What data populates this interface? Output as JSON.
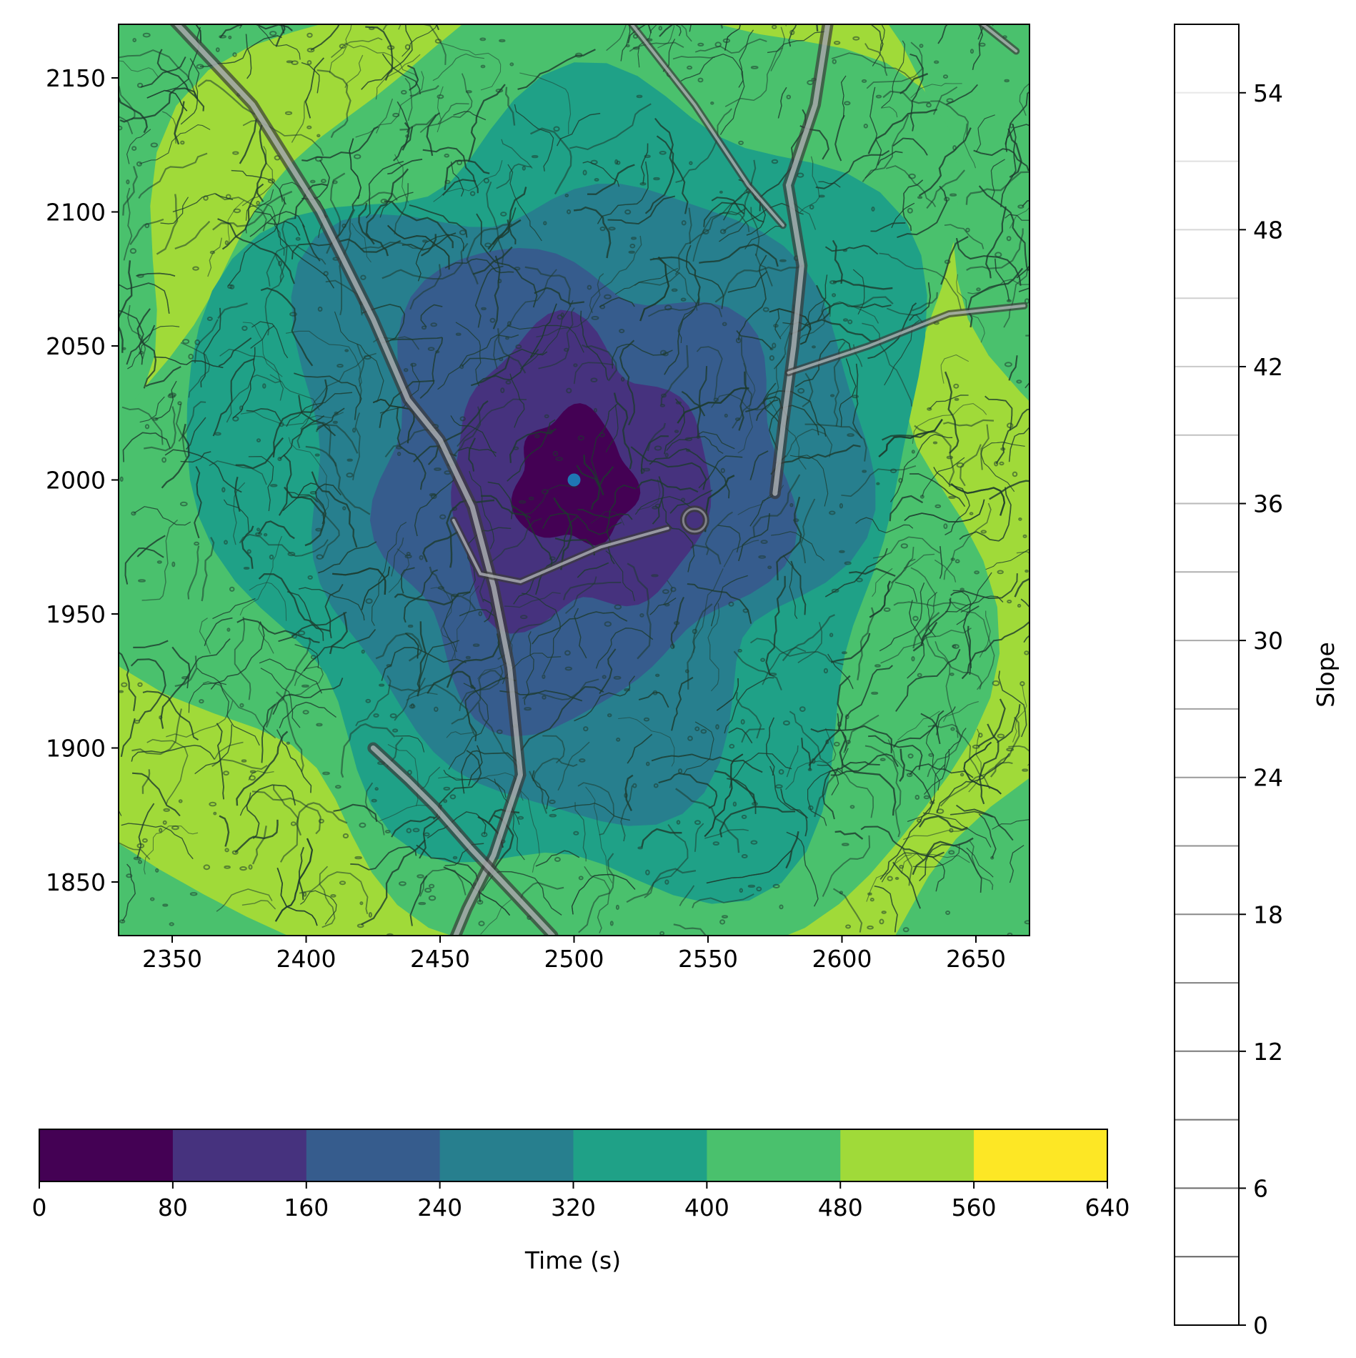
{
  "chart_data": [
    {
      "type": "heatmap",
      "title": "",
      "xlabel": "",
      "ylabel": "",
      "xlim": [
        2330,
        2670
      ],
      "ylim": [
        1830,
        2170
      ],
      "x_ticks": [
        2350,
        2400,
        2450,
        2500,
        2550,
        2600,
        2650
      ],
      "y_ticks": [
        1850,
        1900,
        1950,
        2000,
        2050,
        2100,
        2150
      ],
      "source_point": {
        "x": 2500,
        "y": 2000
      },
      "time_field": {
        "description": "travel time (s), contour-filled",
        "levels": [
          0,
          80,
          160,
          240,
          320,
          400,
          480,
          560,
          640
        ],
        "approx_ring_radii_units": [
          22,
          48,
          76,
          104,
          132,
          160,
          190
        ],
        "level_colors": [
          "#440154",
          "#46327e",
          "#365c8d",
          "#277f8e",
          "#1fa187",
          "#4ac16d",
          "#a0da39",
          "#fde725"
        ]
      }
    },
    {
      "type": "colorbar",
      "label": "Time (s)",
      "orientation": "horizontal",
      "boundaries": [
        0,
        80,
        160,
        240,
        320,
        400,
        480,
        560,
        640
      ],
      "tick_labels": [
        "0",
        "80",
        "160",
        "240",
        "320",
        "400",
        "480",
        "560",
        "640"
      ],
      "colors": [
        "#440154",
        "#46327e",
        "#365c8d",
        "#277f8e",
        "#1fa187",
        "#4ac16d",
        "#a0da39",
        "#fde725"
      ]
    },
    {
      "type": "colorbar",
      "label": "Slope",
      "orientation": "vertical",
      "range": [
        0,
        57
      ],
      "line_levels": [
        3,
        6,
        9,
        12,
        15,
        18,
        21,
        24,
        27,
        30,
        33,
        36,
        39,
        42,
        45,
        48,
        51,
        54
      ],
      "tick_values": [
        0,
        6,
        12,
        18,
        24,
        30,
        36,
        42,
        48,
        54
      ],
      "tick_labels": [
        "0",
        "6",
        "12",
        "18",
        "24",
        "30",
        "36",
        "42",
        "48",
        "54"
      ]
    }
  ]
}
